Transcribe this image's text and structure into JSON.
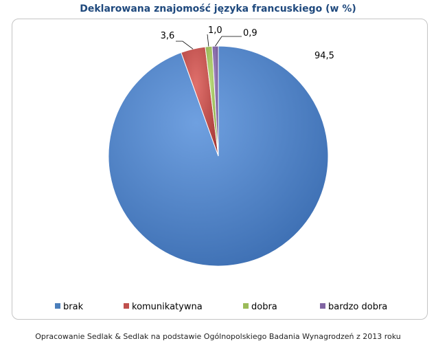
{
  "footer": "Opracowanie Sedlak & Sedlak na podstawie Ogólnopolskiego Badania Wynagrodzeń z 2013 roku",
  "chart_data": {
    "type": "pie",
    "title": "Deklarowana znajomość języka francuskiego (w %)",
    "categories": [
      "brak",
      "komunikatywna",
      "dobra",
      "bardzo dobra"
    ],
    "values": [
      94.5,
      3.6,
      1.0,
      0.9
    ],
    "value_labels": [
      "94,5",
      "3,6",
      "1,0",
      "0,9"
    ],
    "colors": [
      "#4a7ebb",
      "#c0504d",
      "#9bbb59",
      "#8064a2"
    ],
    "legend_position": "bottom"
  }
}
